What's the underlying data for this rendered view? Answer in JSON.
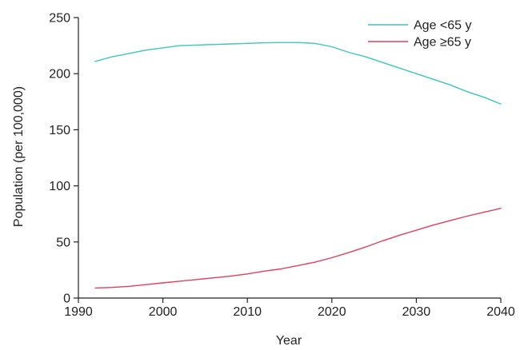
{
  "chart_data": {
    "type": "line",
    "xlabel": "Year",
    "ylabel": "Population (per 100,000)",
    "xlim": [
      1990,
      2040
    ],
    "ylim": [
      0,
      250
    ],
    "xticks": [
      1990,
      2000,
      2010,
      2020,
      2030,
      2040
    ],
    "yticks": [
      0,
      50,
      100,
      150,
      200,
      250
    ],
    "grid": false,
    "legend_position": "top-right",
    "series": [
      {
        "name": "Age <65 y",
        "color": "#3cc6c0",
        "x": [
          1992,
          1994,
          1996,
          1998,
          2000,
          2002,
          2004,
          2006,
          2008,
          2010,
          2012,
          2014,
          2016,
          2018,
          2020,
          2022,
          2024,
          2026,
          2028,
          2030,
          2032,
          2034,
          2036,
          2038,
          2040
        ],
        "y": [
          211,
          215,
          218,
          221,
          223,
          225,
          225.5,
          226,
          226.5,
          227,
          227.5,
          227.8,
          227.8,
          227,
          224,
          219,
          215,
          210,
          205,
          200,
          195,
          190,
          184,
          179,
          173
        ]
      },
      {
        "name": "Age ≥65 y",
        "color": "#e0405e",
        "x": [
          1992,
          1994,
          1996,
          1998,
          2000,
          2002,
          2004,
          2006,
          2008,
          2010,
          2012,
          2014,
          2016,
          2018,
          2020,
          2022,
          2024,
          2026,
          2028,
          2030,
          2032,
          2034,
          2036,
          2038,
          2040
        ],
        "y": [
          9,
          9.5,
          10.5,
          12,
          13.5,
          15,
          16.5,
          18,
          19.5,
          21.5,
          24,
          26,
          29,
          32,
          36,
          40.5,
          45.5,
          51,
          56,
          60.5,
          65,
          69,
          73,
          76.5,
          80
        ]
      }
    ]
  }
}
